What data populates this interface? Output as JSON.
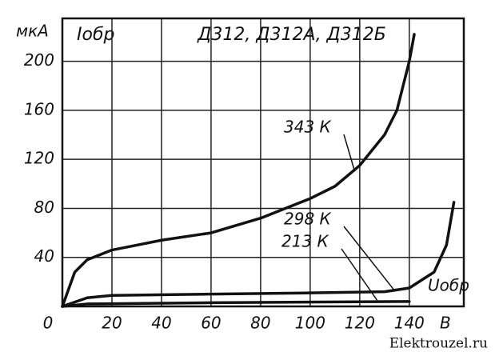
{
  "chart_data": {
    "type": "line",
    "title": "Д312, Д312А, Д312Б",
    "y_label": "Iобр",
    "y_unit": "мкА",
    "x_label": "Uобр",
    "x_unit": "В",
    "source": "Elektrouzel.ru",
    "xlim": [
      0,
      162
    ],
    "ylim": [
      0,
      235
    ],
    "xticks": [
      0,
      20,
      40,
      60,
      80,
      100,
      120,
      140
    ],
    "yticks": [
      40,
      80,
      120,
      160,
      200
    ],
    "grid": true,
    "series": [
      {
        "name": "343 К",
        "color": "#111111",
        "x": [
          0,
          5,
          10,
          20,
          30,
          40,
          60,
          80,
          100,
          110,
          120,
          130,
          135,
          140,
          142
        ],
        "values": [
          0,
          28,
          38,
          46,
          50,
          54,
          60,
          72,
          88,
          98,
          115,
          140,
          160,
          200,
          222
        ]
      },
      {
        "name": "298 К",
        "color": "#111111",
        "x": [
          0,
          10,
          20,
          60,
          100,
          130,
          140,
          150,
          155,
          158
        ],
        "values": [
          0,
          7,
          9,
          10,
          11,
          12,
          15,
          28,
          50,
          85
        ]
      },
      {
        "name": "213 К",
        "color": "#111111",
        "x": [
          0,
          10,
          60,
          140
        ],
        "values": [
          0,
          2,
          3,
          4
        ]
      }
    ]
  }
}
